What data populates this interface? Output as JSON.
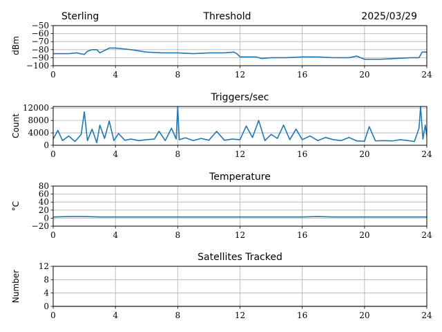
{
  "header": {
    "station": "Sterling",
    "title": "Threshold",
    "date": "2025/03/29"
  },
  "colors": {
    "series": "#1f77b4",
    "grid": "#b0b0b0",
    "axis": "#000000"
  },
  "chart_data": [
    {
      "type": "line",
      "title": "",
      "ylabel": "dBm",
      "xlim": [
        0,
        24
      ],
      "ylim": [
        -100,
        -50
      ],
      "xticks": [
        "0",
        "4",
        "8",
        "12",
        "16",
        "20",
        "24"
      ],
      "yticks": [
        "−50",
        "−60",
        "−70",
        "−80",
        "−90",
        "−100"
      ],
      "grid": true,
      "x": [
        0,
        1,
        1.5,
        2,
        2.2,
        2.5,
        2.8,
        3,
        3.3,
        3.6,
        4,
        4.5,
        5,
        6,
        7,
        8,
        9,
        10,
        11,
        11.6,
        11.8,
        12,
        13,
        13.4,
        14,
        15,
        16,
        17,
        18,
        19,
        19.5,
        20,
        21,
        22,
        23,
        23.5,
        23.7,
        24
      ],
      "series": [
        {
          "values": [
            -85,
            -85,
            -84,
            -86,
            -82,
            -80,
            -80,
            -84,
            -81,
            -78,
            -78,
            -79,
            -80,
            -83,
            -84,
            -84,
            -85,
            -84,
            -84,
            -83,
            -85,
            -89,
            -89,
            -91,
            -90,
            -90,
            -89,
            -89,
            -90,
            -90,
            -88,
            -92,
            -92,
            -91,
            -90,
            -90,
            -83,
            -83
          ]
        }
      ]
    },
    {
      "type": "line",
      "title": "Triggers/sec",
      "ylabel": "Count",
      "xlim": [
        0,
        24
      ],
      "ylim": [
        0,
        12500
      ],
      "xticks": [
        "0",
        "4",
        "8",
        "12",
        "16",
        "20",
        "24"
      ],
      "yticks": [
        "0",
        "4000",
        "8000",
        "12000"
      ],
      "grid": true,
      "x": [
        0,
        0.3,
        0.6,
        1.0,
        1.4,
        1.8,
        2.0,
        2.2,
        2.5,
        2.8,
        3.0,
        3.3,
        3.6,
        3.9,
        4.2,
        4.6,
        5.0,
        5.5,
        6.0,
        6.5,
        6.8,
        7.2,
        7.6,
        7.9,
        8.0,
        8.1,
        8.5,
        9.0,
        9.5,
        10.0,
        10.5,
        11.0,
        11.5,
        12.0,
        12.4,
        12.8,
        13.2,
        13.6,
        14.0,
        14.4,
        14.8,
        15.2,
        15.6,
        16.0,
        16.5,
        17.0,
        17.5,
        18.0,
        18.5,
        19.0,
        19.5,
        20.0,
        20.3,
        20.7,
        21.2,
        21.8,
        22.3,
        22.8,
        23.2,
        23.5,
        23.6,
        23.75,
        23.9,
        24
      ],
      "series": [
        {
          "values": [
            2000,
            4800,
            1500,
            3000,
            1200,
            3500,
            10800,
            1500,
            5200,
            800,
            6500,
            2200,
            7800,
            1500,
            3800,
            1600,
            2000,
            1500,
            1800,
            2000,
            4500,
            1500,
            5500,
            2000,
            12500,
            1800,
            2400,
            1500,
            2200,
            1600,
            4500,
            1600,
            2000,
            1800,
            6200,
            2500,
            8000,
            1500,
            3500,
            2200,
            6500,
            1800,
            5200,
            1800,
            3000,
            1500,
            2500,
            1800,
            1500,
            2500,
            1400,
            1300,
            6000,
            1400,
            1500,
            1400,
            1800,
            1500,
            1200,
            5500,
            12500,
            2000,
            6500,
            3000
          ]
        }
      ]
    },
    {
      "type": "line",
      "title": "Temperature",
      "ylabel": "°C",
      "xlim": [
        0,
        24
      ],
      "ylim": [
        -20,
        80
      ],
      "xticks": [
        "0",
        "4",
        "8",
        "12",
        "16",
        "20",
        "24"
      ],
      "yticks": [
        "−20",
        "0",
        "20",
        "40",
        "60",
        "80"
      ],
      "grid": true,
      "x": [
        0,
        1,
        2,
        3,
        4,
        6,
        8,
        10,
        12,
        14,
        16,
        17,
        18,
        19,
        20,
        22,
        24
      ],
      "series": [
        {
          "values": [
            3,
            4,
            4,
            3,
            3,
            3,
            3,
            3,
            3,
            3,
            3,
            4,
            3,
            3,
            3,
            3,
            3
          ]
        }
      ]
    },
    {
      "type": "line",
      "title": "Satellites Tracked",
      "ylabel": "Number",
      "xlim": [
        0,
        24
      ],
      "ylim": [
        0,
        12
      ],
      "xticks": [
        "0",
        "4",
        "8",
        "12",
        "16",
        "20",
        "24"
      ],
      "yticks": [
        "0",
        "4",
        "8",
        "12"
      ],
      "grid": true,
      "x": [
        0,
        24
      ],
      "series": [
        {
          "values": [
            0,
            0
          ]
        }
      ]
    }
  ]
}
